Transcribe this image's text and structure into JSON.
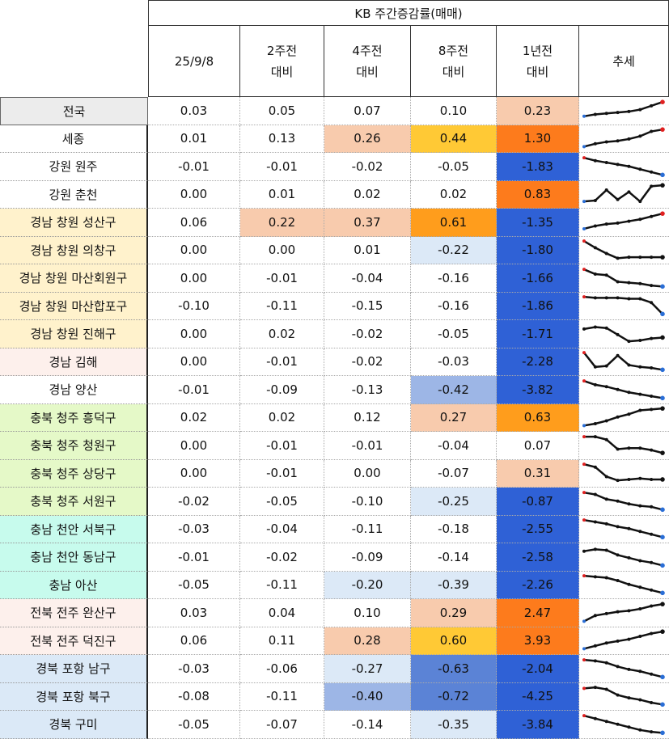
{
  "title": "KB 주간증감률(매매)",
  "columns": [
    {
      "l1": "25/9/8",
      "l2": ""
    },
    {
      "l1": "2주전",
      "l2": "대비"
    },
    {
      "l1": "4주전",
      "l2": "대비"
    },
    {
      "l1": "8주전",
      "l2": "대비"
    },
    {
      "l1": "1년전",
      "l2": "대비"
    }
  ],
  "trend_label": "추세",
  "colors": {
    "peach": "#f8cbad",
    "yellow": "#ffc935",
    "orange_light": "#ff9d1c",
    "orange": "#fd7b1c",
    "blue_strong": "#2f61d6",
    "blue_mid": "#5b83d6",
    "blue_soft": "#9db6e6",
    "blue_pale": "#dce9f7",
    "label_gray": "#ececec",
    "label_yellow": "#fff2cc",
    "label_pink": "#fdf0ec",
    "label_green": "#e5f9c8",
    "label_mint": "#c7fbed",
    "label_blue": "#dbe9f7"
  },
  "rows": [
    {
      "name": "전국",
      "v": [
        "0.03",
        "0.05",
        "0.07",
        "0.10",
        "0.23"
      ],
      "trend": [
        0.2,
        0.3,
        0.35,
        0.4,
        0.45,
        0.55,
        0.75,
        0.95
      ],
      "trend_end": "red"
    },
    {
      "name": "세종",
      "v": [
        "0.01",
        "0.13",
        "0.26",
        "0.44",
        "1.30"
      ],
      "trend": [
        0.05,
        0.2,
        0.3,
        0.35,
        0.45,
        0.6,
        0.85,
        0.95
      ],
      "trend_end": "red"
    },
    {
      "name": "강원 원주",
      "v": [
        "-0.01",
        "-0.01",
        "-0.02",
        "-0.05",
        "-1.83"
      ],
      "trend": [
        0.95,
        0.8,
        0.7,
        0.6,
        0.5,
        0.35,
        0.2,
        0.05
      ],
      "trend_end": "blue"
    },
    {
      "name": "강원 춘천",
      "v": [
        "0.00",
        "0.01",
        "0.02",
        "0.02",
        "0.83"
      ],
      "trend": [
        0.1,
        0.15,
        0.7,
        0.2,
        0.6,
        0.1,
        0.9,
        0.95
      ],
      "trend_end": "black"
    },
    {
      "name": "경남 창원 성산구",
      "v": [
        "0.06",
        "0.22",
        "0.37",
        "0.61",
        "-1.35"
      ],
      "trend": [
        0.15,
        0.3,
        0.4,
        0.45,
        0.55,
        0.65,
        0.8,
        0.95
      ],
      "trend_end": "red"
    },
    {
      "name": "경남 창원 의창구",
      "v": [
        "0.00",
        "0.00",
        "0.01",
        "-0.22",
        "-1.80"
      ],
      "trend": [
        0.95,
        0.6,
        0.3,
        0.05,
        0.1,
        0.1,
        0.1,
        0.1
      ],
      "trend_end": "black"
    },
    {
      "name": "경남 창원 마산회원구",
      "v": [
        "0.00",
        "-0.01",
        "-0.04",
        "-0.16",
        "-1.66"
      ],
      "trend": [
        0.95,
        0.7,
        0.65,
        0.3,
        0.25,
        0.2,
        0.1,
        0.05
      ],
      "trend_end": "blue"
    },
    {
      "name": "경남 창원 마산합포구",
      "v": [
        "-0.10",
        "-0.11",
        "-0.15",
        "-0.16",
        "-1.86"
      ],
      "trend": [
        0.95,
        0.9,
        0.9,
        0.9,
        0.85,
        0.85,
        0.65,
        0.05
      ],
      "trend_end": "blue"
    },
    {
      "name": "경남 창원 진해구",
      "v": [
        "0.00",
        "0.02",
        "-0.02",
        "-0.05",
        "-1.71"
      ],
      "trend": [
        0.75,
        0.85,
        0.8,
        0.45,
        0.1,
        0.15,
        0.25,
        0.3
      ],
      "trend_end": "black"
    },
    {
      "name": "경남 김해",
      "v": [
        "0.00",
        "-0.01",
        "-0.02",
        "-0.03",
        "-2.28"
      ],
      "trend": [
        0.95,
        0.2,
        0.25,
        0.8,
        0.3,
        0.2,
        0.15,
        0.05
      ],
      "trend_end": "blue"
    },
    {
      "name": "경남 양산",
      "v": [
        "-0.01",
        "-0.09",
        "-0.13",
        "-0.42",
        "-3.82"
      ],
      "trend": [
        0.95,
        0.75,
        0.65,
        0.5,
        0.35,
        0.25,
        0.15,
        0.05
      ],
      "trend_end": "blue"
    },
    {
      "name": "충북 청주 흥덕구",
      "v": [
        "0.02",
        "0.02",
        "0.12",
        "0.27",
        "0.63"
      ],
      "trend": [
        0.05,
        0.15,
        0.3,
        0.5,
        0.65,
        0.85,
        0.9,
        0.95
      ],
      "trend_end": "black"
    },
    {
      "name": "충북 청주 청원구",
      "v": [
        "0.00",
        "-0.01",
        "-0.01",
        "-0.04",
        "0.07"
      ],
      "trend": [
        0.95,
        0.95,
        0.8,
        0.3,
        0.35,
        0.35,
        0.25,
        0.1
      ],
      "trend_end": "black"
    },
    {
      "name": "충북 청주 상당구",
      "v": [
        "0.00",
        "-0.01",
        "0.00",
        "-0.07",
        "0.31"
      ],
      "trend": [
        0.95,
        0.8,
        0.3,
        0.1,
        0.15,
        0.2,
        0.15,
        0.15
      ],
      "trend_end": "black"
    },
    {
      "name": "충북 청주 서원구",
      "v": [
        "-0.02",
        "-0.05",
        "-0.10",
        "-0.25",
        "-0.87"
      ],
      "trend": [
        0.95,
        0.85,
        0.6,
        0.5,
        0.35,
        0.25,
        0.2,
        0.05
      ],
      "trend_end": "blue"
    },
    {
      "name": "충남 천안 서북구",
      "v": [
        "-0.03",
        "-0.04",
        "-0.11",
        "-0.18",
        "-2.55"
      ],
      "trend": [
        0.95,
        0.85,
        0.75,
        0.6,
        0.5,
        0.35,
        0.2,
        0.05
      ],
      "trend_end": "blue"
    },
    {
      "name": "충남 천안 동남구",
      "v": [
        "-0.01",
        "-0.02",
        "-0.09",
        "-0.14",
        "-2.58"
      ],
      "trend": [
        0.8,
        0.9,
        0.85,
        0.6,
        0.45,
        0.3,
        0.2,
        0.05
      ],
      "trend_end": "blue"
    },
    {
      "name": "충남 아산",
      "v": [
        "-0.05",
        "-0.11",
        "-0.20",
        "-0.39",
        "-2.26"
      ],
      "trend": [
        0.95,
        0.9,
        0.85,
        0.7,
        0.5,
        0.35,
        0.2,
        0.05
      ],
      "trend_end": "blue"
    },
    {
      "name": "전북 전주 완산구",
      "v": [
        "0.03",
        "0.04",
        "0.10",
        "0.29",
        "2.47"
      ],
      "trend": [
        0.05,
        0.35,
        0.45,
        0.55,
        0.6,
        0.7,
        0.85,
        0.95
      ],
      "trend_end": "black"
    },
    {
      "name": "전북 전주 덕진구",
      "v": [
        "0.06",
        "0.11",
        "0.28",
        "0.60",
        "3.93"
      ],
      "trend": [
        0.05,
        0.2,
        0.35,
        0.45,
        0.55,
        0.7,
        0.85,
        0.95
      ],
      "trend_end": "black"
    },
    {
      "name": "경북 포항 남구",
      "v": [
        "-0.03",
        "-0.06",
        "-0.27",
        "-0.63",
        "-2.04"
      ],
      "trend": [
        0.95,
        0.9,
        0.8,
        0.6,
        0.45,
        0.35,
        0.2,
        0.05
      ],
      "trend_end": "blue"
    },
    {
      "name": "경북 포항 북구",
      "v": [
        "-0.08",
        "-0.11",
        "-0.40",
        "-0.72",
        "-4.25"
      ],
      "trend": [
        0.9,
        0.95,
        0.85,
        0.55,
        0.4,
        0.3,
        0.15,
        0.05
      ],
      "trend_end": "blue"
    },
    {
      "name": "경북 구미",
      "v": [
        "-0.05",
        "-0.07",
        "-0.14",
        "-0.35",
        "-3.84"
      ],
      "trend": [
        0.95,
        0.8,
        0.65,
        0.5,
        0.35,
        0.2,
        0.1,
        0.05
      ],
      "trend_end": "blue"
    }
  ]
}
